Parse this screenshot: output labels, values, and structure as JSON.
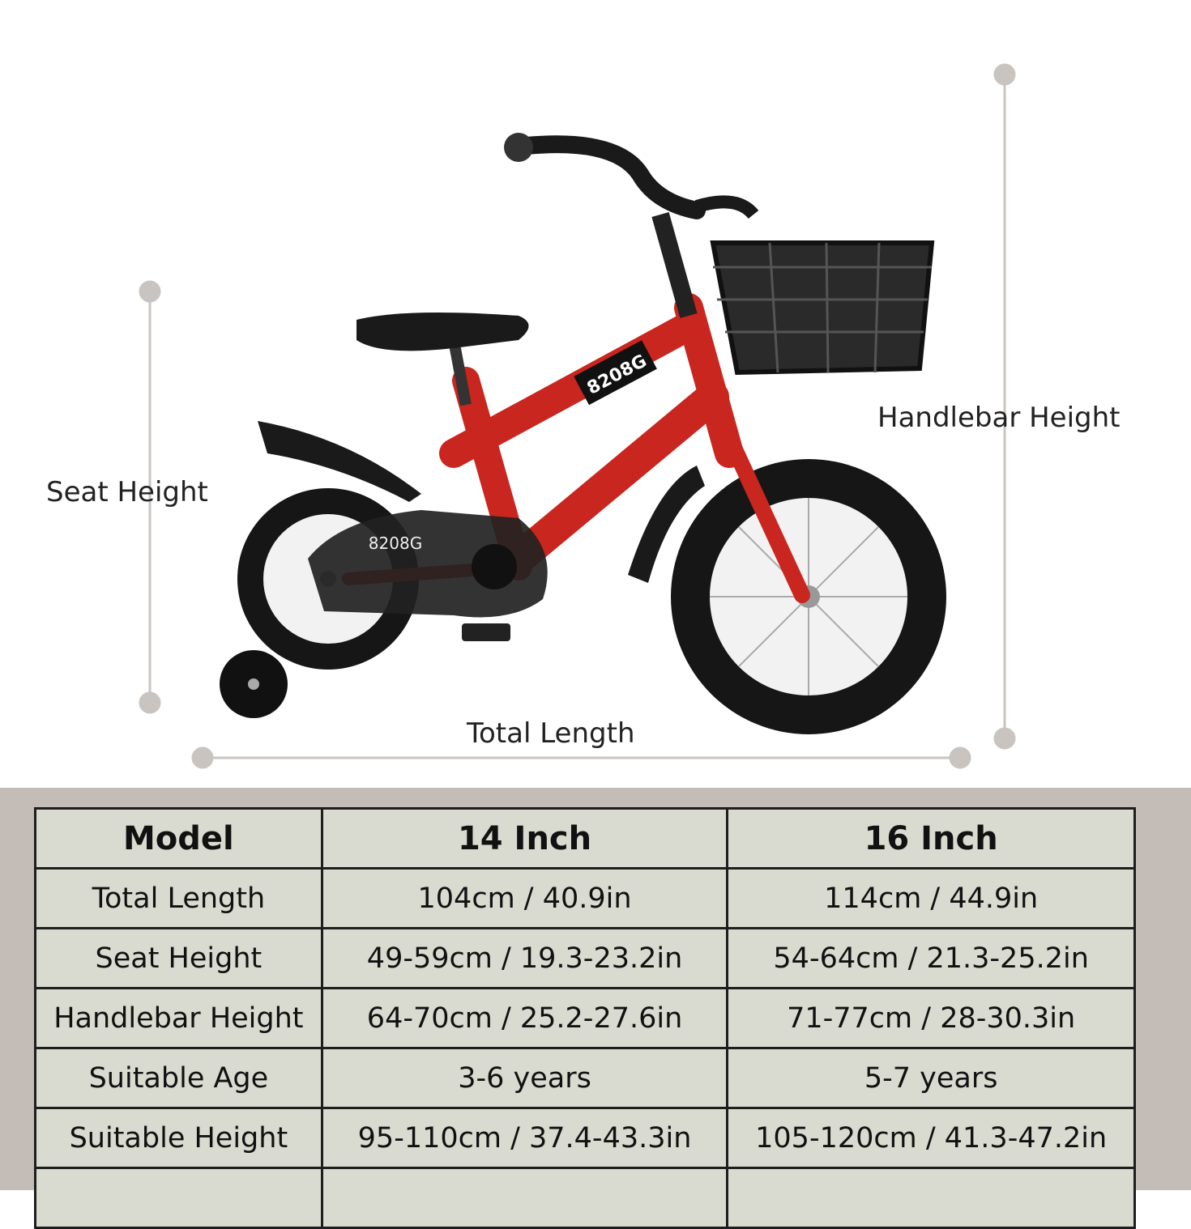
{
  "labels": {
    "seat_height": "Seat Height",
    "handlebar_height": "Handlebar Height",
    "total_length": "Total Length"
  },
  "bike": {
    "frame_color": "#c8261e",
    "badge": "8208G"
  },
  "table": {
    "header": [
      "Model",
      "14 Inch",
      "16 Inch"
    ],
    "rows": [
      [
        "Total Length",
        "104cm / 40.9in",
        "114cm / 44.9in"
      ],
      [
        "Seat Height",
        "49-59cm / 19.3-23.2in",
        "54-64cm / 21.3-25.2in"
      ],
      [
        "Handlebar Height",
        "64-70cm / 25.2-27.6in",
        "71-77cm / 28-30.3in"
      ],
      [
        "Suitable Age",
        "3-6 years",
        "5-7 years"
      ],
      [
        "Suitable Height",
        "95-110cm / 37.4-43.3in",
        "105-120cm / 41.3-47.2in"
      ]
    ]
  }
}
